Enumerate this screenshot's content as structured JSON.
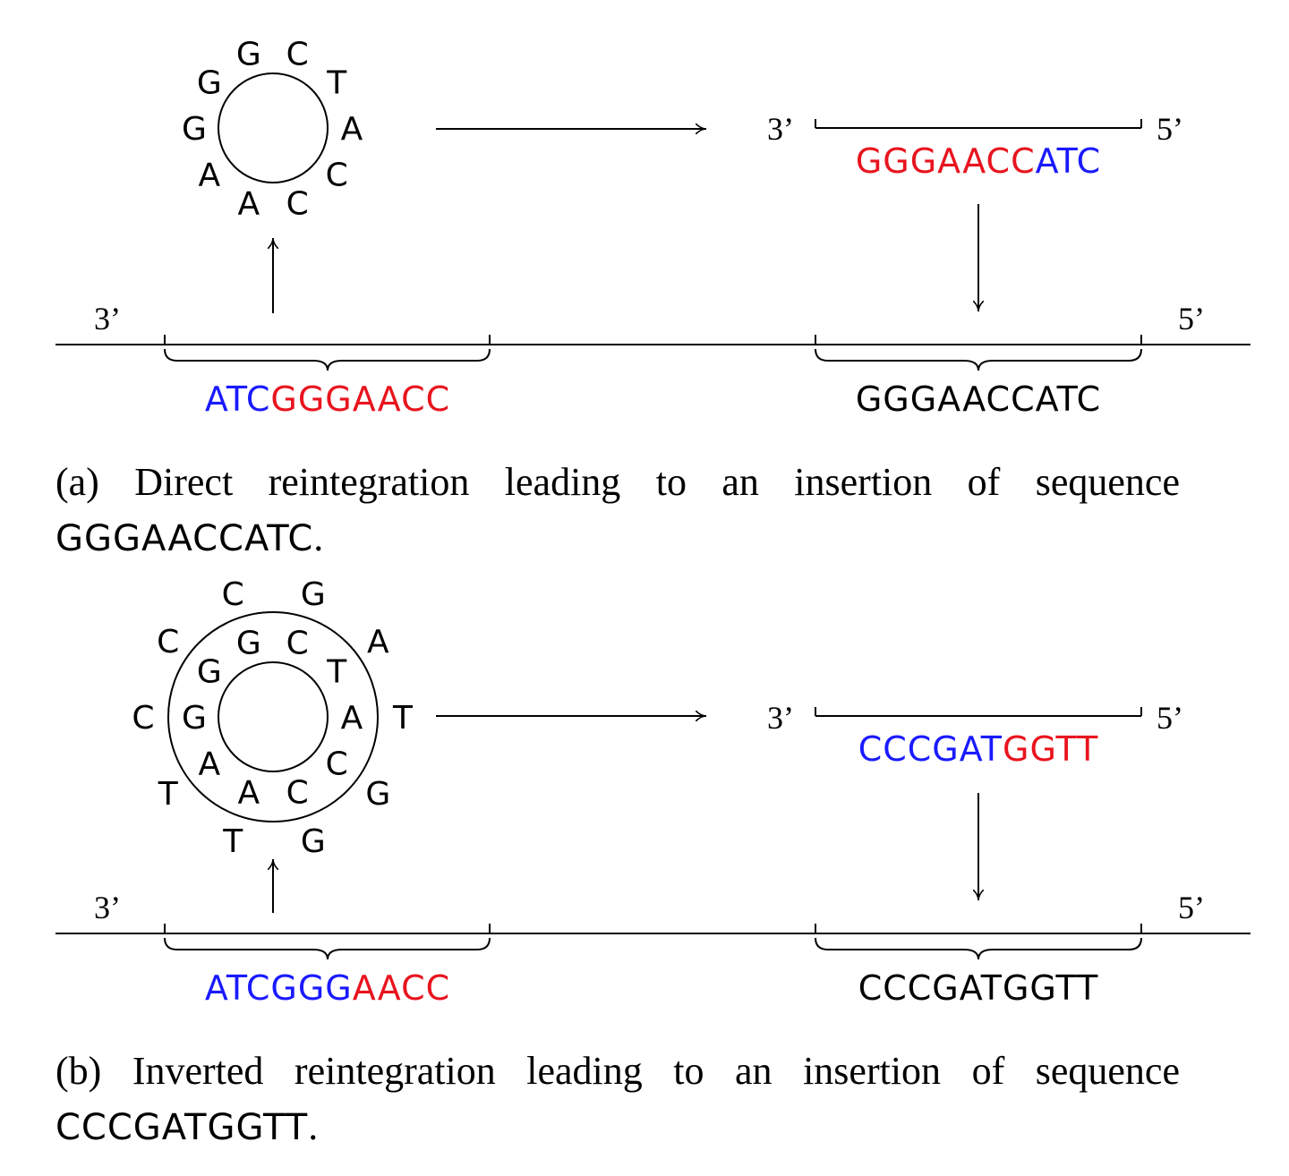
{
  "colors": {
    "blue": "#1a1aff",
    "red": "#e8141e",
    "black": "#000000"
  },
  "panel_a": {
    "circle_letters": [
      "G",
      "C",
      "T",
      "A",
      "C",
      "C",
      "A",
      "A",
      "G",
      "G"
    ],
    "strand_3": "3’",
    "strand_5": "5’",
    "excised_seq": [
      {
        "text": "ATC",
        "color": "blue"
      },
      {
        "text": "GGGAACC",
        "color": "red"
      }
    ],
    "linear_seq": [
      {
        "text": "GGGAACC",
        "color": "red"
      },
      {
        "text": "ATC",
        "color": "blue"
      }
    ],
    "inserted_seq": "GGGAACCATC",
    "caption_text": "(a) Direct reintegration leading to an insertion of sequence",
    "caption_seq": "GGGAACCATC",
    "caption_end": "."
  },
  "panel_b": {
    "inner_letters": [
      "G",
      "C",
      "T",
      "A",
      "C",
      "C",
      "A",
      "A",
      "G",
      "G"
    ],
    "outer_letters": [
      "C",
      "G",
      "A",
      "T",
      "G",
      "G",
      "T",
      "T",
      "C",
      "C"
    ],
    "strand_3": "3’",
    "strand_5": "5’",
    "excised_seq": [
      {
        "text": "ATCGGG",
        "color": "blue"
      },
      {
        "text": "AACC",
        "color": "red"
      }
    ],
    "linear_seq": [
      {
        "text": "CCCGAT",
        "color": "blue"
      },
      {
        "text": "GGTT",
        "color": "red"
      }
    ],
    "inserted_seq": "CCCGATGGTT",
    "caption_text": "(b) Inverted reintegration leading to an insertion of sequence",
    "caption_seq": "CCCGATGGTT",
    "caption_end": "."
  }
}
